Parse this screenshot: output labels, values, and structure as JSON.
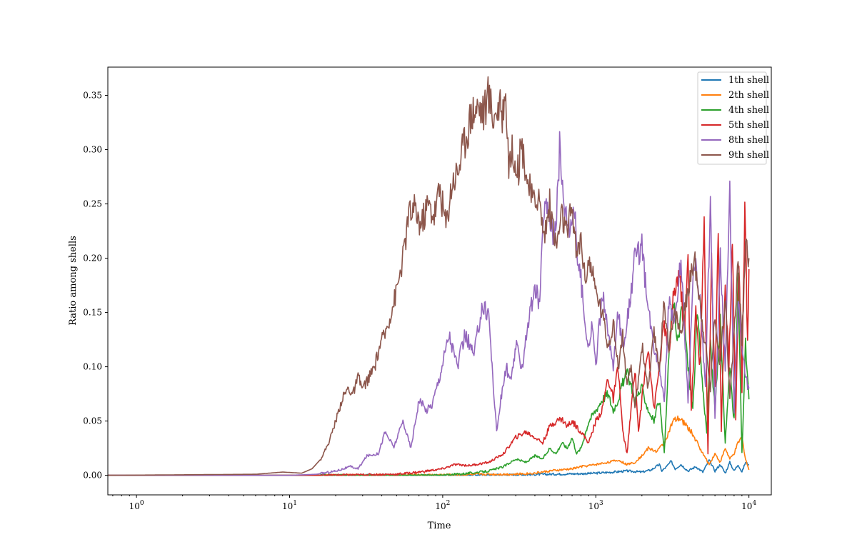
{
  "chart_data": {
    "type": "line",
    "xlabel": "Time",
    "ylabel": "Ratio among shells",
    "xscale": "log",
    "xlim": [
      0.65,
      14000
    ],
    "ylim": [
      -0.018,
      0.376
    ],
    "x_ticks": [
      {
        "value": 1,
        "base": "10",
        "exp": "0"
      },
      {
        "value": 10,
        "base": "10",
        "exp": "1"
      },
      {
        "value": 100,
        "base": "10",
        "exp": "2"
      },
      {
        "value": 1000,
        "base": "10",
        "exp": "3"
      },
      {
        "value": 10000,
        "base": "10",
        "exp": "4"
      }
    ],
    "y_ticks": [
      {
        "value": 0.0,
        "label": "0.00"
      },
      {
        "value": 0.05,
        "label": "0.05"
      },
      {
        "value": 0.1,
        "label": "0.10"
      },
      {
        "value": 0.15,
        "label": "0.15"
      },
      {
        "value": 0.2,
        "label": "0.20"
      },
      {
        "value": 0.25,
        "label": "0.25"
      },
      {
        "value": 0.3,
        "label": "0.30"
      },
      {
        "value": 0.35,
        "label": "0.35"
      }
    ],
    "legend_position": "top-right",
    "grid": false,
    "series": [
      {
        "name": "1th shell",
        "color": "#1f77b4",
        "x": [
          0.65,
          10,
          100,
          300,
          500,
          800,
          1000,
          1300,
          1600,
          2000,
          2300,
          2600,
          2700,
          2900,
          3100,
          3300,
          3600,
          4000,
          4500,
          5000,
          5500,
          6000,
          6500,
          7000,
          7500,
          8000,
          8500,
          9000,
          9500,
          10000
        ],
        "y": [
          0,
          0,
          0,
          0.0005,
          0.001,
          0.0015,
          0.002,
          0.003,
          0.004,
          0.003,
          0.005,
          0.01,
          0.004,
          0.008,
          0.013,
          0.006,
          0.01,
          0.004,
          0.008,
          0.003,
          0.014,
          0.004,
          0.01,
          0.002,
          0.012,
          0.004,
          0.01,
          0.003,
          0.012,
          0.01
        ]
      },
      {
        "name": "2th shell",
        "color": "#ff7f0e",
        "x": [
          0.65,
          30,
          100,
          200,
          300,
          400,
          500,
          600,
          700,
          800,
          900,
          1000,
          1200,
          1400,
          1600,
          1800,
          2000,
          2200,
          2500,
          2800,
          3000,
          3200,
          3500,
          3800,
          4200,
          4600,
          5000,
          5500,
          6000,
          6500,
          7000,
          7500,
          8000,
          8500,
          9000,
          9500,
          10000
        ],
        "y": [
          0,
          0,
          0.0005,
          0.001,
          0.001,
          0.002,
          0.004,
          0.005,
          0.006,
          0.008,
          0.009,
          0.01,
          0.012,
          0.014,
          0.01,
          0.012,
          0.018,
          0.025,
          0.022,
          0.03,
          0.04,
          0.05,
          0.052,
          0.048,
          0.04,
          0.03,
          0.02,
          0.01,
          0.02,
          0.012,
          0.025,
          0.015,
          0.02,
          0.03,
          0.035,
          0.015,
          0.005
        ]
      },
      {
        "name": "4th shell",
        "color": "#2ca02c",
        "x": [
          0.65,
          100,
          150,
          200,
          250,
          300,
          350,
          400,
          450,
          500,
          550,
          600,
          650,
          700,
          750,
          800,
          900,
          1000,
          1100,
          1200,
          1300,
          1400,
          1500,
          1600,
          1800,
          2000,
          2200,
          2400,
          2600,
          2800,
          3000,
          3200,
          3400,
          3700,
          4000,
          4300,
          4600,
          5000,
          5300,
          5600,
          6000,
          6500,
          7000,
          7500,
          8000,
          8500,
          9000,
          9500,
          10000
        ],
        "y": [
          0,
          0,
          0.002,
          0.004,
          0.008,
          0.015,
          0.012,
          0.018,
          0.015,
          0.025,
          0.02,
          0.03,
          0.025,
          0.035,
          0.02,
          0.025,
          0.05,
          0.06,
          0.07,
          0.075,
          0.06,
          0.07,
          0.085,
          0.095,
          0.07,
          0.08,
          0.06,
          0.05,
          0.07,
          0.02,
          0.11,
          0.165,
          0.12,
          0.16,
          0.1,
          0.06,
          0.15,
          0.08,
          0.04,
          0.12,
          0.06,
          0.14,
          0.03,
          0.1,
          0.05,
          0.18,
          0.02,
          0.12,
          0.07
        ]
      },
      {
        "name": "5th shell",
        "color": "#d62728",
        "x": [
          0.65,
          15,
          30,
          50,
          70,
          100,
          120,
          150,
          200,
          250,
          300,
          350,
          400,
          450,
          500,
          550,
          600,
          650,
          700,
          800,
          900,
          1000,
          1100,
          1200,
          1300,
          1400,
          1500,
          1600,
          1700,
          1800,
          1900,
          2000,
          2200,
          2400,
          2600,
          2800,
          3000,
          3200,
          3500,
          3800,
          4000,
          4200,
          4500,
          4800,
          5100,
          5400,
          5700,
          6000,
          6300,
          6600,
          7000,
          7400,
          7800,
          8200,
          8600,
          9000,
          9400,
          9800,
          10000
        ],
        "y": [
          0,
          0,
          0.0005,
          0.001,
          0.003,
          0.006,
          0.01,
          0.009,
          0.012,
          0.02,
          0.035,
          0.04,
          0.035,
          0.03,
          0.045,
          0.05,
          0.052,
          0.045,
          0.05,
          0.04,
          0.03,
          0.05,
          0.06,
          0.09,
          0.07,
          0.1,
          0.04,
          0.02,
          0.06,
          0.1,
          0.04,
          0.07,
          0.12,
          0.06,
          0.1,
          0.14,
          0.11,
          0.16,
          0.19,
          0.13,
          0.2,
          0.06,
          0.15,
          0.1,
          0.23,
          0.02,
          0.2,
          0.08,
          0.23,
          0.04,
          0.18,
          0.1,
          0.22,
          0.05,
          0.2,
          0.08,
          0.25,
          0.12,
          0.19
        ]
      },
      {
        "name": "8th shell",
        "color": "#9467bd",
        "x": [
          0.65,
          10,
          15,
          20,
          25,
          28,
          32,
          38,
          42,
          48,
          55,
          62,
          70,
          78,
          85,
          95,
          110,
          125,
          140,
          160,
          180,
          200,
          210,
          225,
          240,
          260,
          280,
          300,
          330,
          360,
          400,
          430,
          460,
          500,
          530,
          560,
          580,
          600,
          640,
          680,
          720,
          760,
          800,
          850,
          900,
          950,
          1000,
          1100,
          1200,
          1300,
          1400,
          1500,
          1600,
          1800,
          2000,
          2200,
          2400,
          2600,
          2800,
          3000,
          3300,
          3600,
          4000,
          4400,
          4800,
          5200,
          5600,
          6000,
          6500,
          7000,
          7500,
          8000,
          8500,
          9000,
          9500,
          10000
        ],
        "y": [
          0,
          0,
          0.001,
          0.004,
          0.008,
          0.006,
          0.018,
          0.02,
          0.04,
          0.026,
          0.05,
          0.025,
          0.07,
          0.06,
          0.065,
          0.09,
          0.13,
          0.1,
          0.13,
          0.11,
          0.155,
          0.15,
          0.1,
          0.04,
          0.07,
          0.1,
          0.085,
          0.12,
          0.1,
          0.14,
          0.17,
          0.16,
          0.25,
          0.24,
          0.22,
          0.25,
          0.305,
          0.27,
          0.24,
          0.23,
          0.25,
          0.2,
          0.18,
          0.14,
          0.12,
          0.14,
          0.1,
          0.17,
          0.13,
          0.1,
          0.15,
          0.12,
          0.14,
          0.2,
          0.21,
          0.15,
          0.12,
          0.1,
          0.07,
          0.16,
          0.14,
          0.2,
          0.07,
          0.2,
          0.16,
          0.08,
          0.25,
          0.05,
          0.2,
          0.1,
          0.26,
          0.06,
          0.16,
          0.12,
          0.09,
          0.08
        ]
      },
      {
        "name": "9th shell",
        "color": "#8c564b",
        "x": [
          0.65,
          6,
          9,
          12,
          14,
          16,
          18,
          20,
          22,
          24,
          26,
          28,
          30,
          33,
          36,
          39,
          42,
          46,
          50,
          55,
          60,
          66,
          72,
          80,
          88,
          96,
          105,
          115,
          125,
          140,
          155,
          170,
          185,
          200,
          215,
          230,
          245,
          255,
          270,
          290,
          310,
          330,
          360,
          390,
          420,
          460,
          500,
          550,
          600,
          650,
          700,
          750,
          800,
          850,
          900,
          1000,
          1100,
          1200,
          1300,
          1400,
          1500,
          1600,
          1700,
          1800,
          1900,
          2000,
          2200,
          2400,
          2600,
          2800,
          3000,
          3300,
          3600,
          4000,
          4400,
          4800,
          5200,
          5600,
          6000,
          6500,
          7000,
          7500,
          8000,
          8500,
          9000,
          9500,
          10000
        ],
        "y": [
          0,
          0.001,
          0.003,
          0.002,
          0.006,
          0.015,
          0.03,
          0.05,
          0.07,
          0.08,
          0.075,
          0.09,
          0.08,
          0.09,
          0.1,
          0.12,
          0.13,
          0.15,
          0.17,
          0.2,
          0.24,
          0.245,
          0.23,
          0.25,
          0.24,
          0.265,
          0.23,
          0.27,
          0.28,
          0.31,
          0.335,
          0.34,
          0.335,
          0.35,
          0.33,
          0.34,
          0.33,
          0.36,
          0.29,
          0.3,
          0.28,
          0.305,
          0.27,
          0.25,
          0.26,
          0.22,
          0.25,
          0.21,
          0.24,
          0.22,
          0.25,
          0.2,
          0.22,
          0.18,
          0.2,
          0.17,
          0.15,
          0.12,
          0.14,
          0.1,
          0.13,
          0.08,
          0.1,
          0.06,
          0.09,
          0.12,
          0.08,
          0.13,
          0.1,
          0.16,
          0.12,
          0.15,
          0.13,
          0.17,
          0.2,
          0.16,
          0.12,
          0.08,
          0.15,
          0.1,
          0.17,
          0.07,
          0.13,
          0.2,
          0.12,
          0.22,
          0.2
        ]
      }
    ]
  }
}
